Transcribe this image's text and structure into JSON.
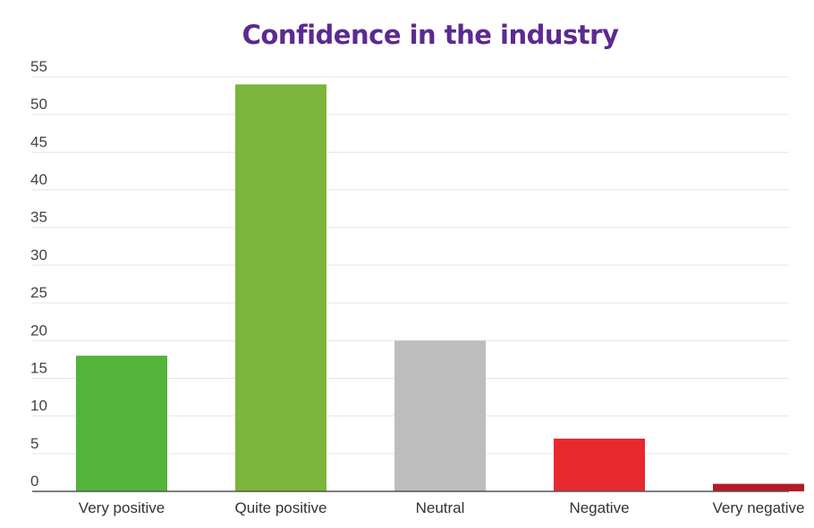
{
  "chart_data": {
    "type": "bar",
    "title": "Confidence in the industry",
    "categories": [
      "Very positive",
      "Quite positive",
      "Neutral",
      "Negative",
      "Very negative"
    ],
    "values": [
      18,
      54,
      20,
      7,
      1
    ],
    "colors": [
      "#52b43a",
      "#7cb53b",
      "#bdbdbd",
      "#e8282f",
      "#b51924"
    ],
    "ylim": [
      0,
      55
    ],
    "yticks": [
      0,
      5,
      10,
      15,
      20,
      25,
      30,
      35,
      40,
      45,
      50,
      55
    ],
    "grid": true,
    "legend": "none"
  },
  "style": {
    "title_color": "#5b2a91",
    "grid_color": "#e6e6e6",
    "axis_color": "#555555"
  }
}
